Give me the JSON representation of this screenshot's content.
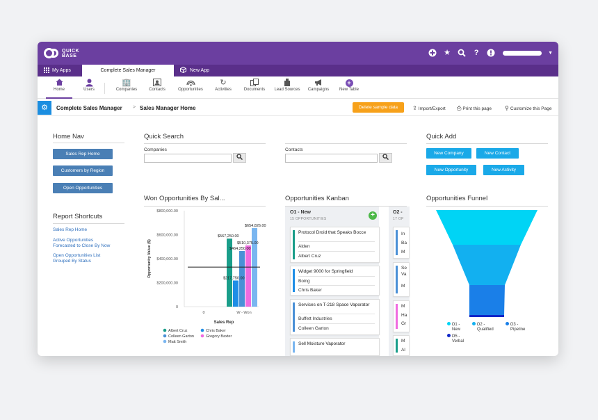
{
  "topbar": {
    "logo_line1": "QUICK",
    "logo_line2": "BASE",
    "icons": [
      "add-icon",
      "star-icon",
      "search-icon",
      "help-icon",
      "alert-icon"
    ]
  },
  "tabs": {
    "my_apps": "My Apps",
    "active": "Complete Sales Manager",
    "new_app": "New App"
  },
  "nav": {
    "items": [
      "Home",
      "Users",
      "Companies",
      "Contacts",
      "Opportunities",
      "Activities",
      "Documents",
      "Lead Sources",
      "Campaigns",
      "New Table"
    ]
  },
  "breadcrumb": {
    "app": "Complete Sales Manager",
    "sep": ">",
    "page": "Sales Manager Home",
    "delete_sample": "Delete sample data",
    "import_export": "Import/Export",
    "print": "Print this page",
    "customize": "Customize this Page"
  },
  "home_nav": {
    "title": "Home Nav",
    "buttons": [
      "Sales Rep Home",
      "Customers by Region",
      "Open Opportunities"
    ]
  },
  "report_shortcuts": {
    "title": "Report Shortcuts",
    "links": [
      "Sales Rep Home",
      "Active Opportunities",
      "Forecasted to Close By Now",
      "Open Opportunities List",
      "Grouped By Status"
    ]
  },
  "quick_search": {
    "title": "Quick Search",
    "companies_label": "Companies",
    "contacts_label": "Contacts"
  },
  "quick_add": {
    "title": "Quick Add",
    "buttons": [
      "New Company",
      "New Contact",
      "New Opportunity",
      "New Activity"
    ]
  },
  "won_chart": {
    "title": "Won Opportunities By Sal..."
  },
  "chart_data": {
    "type": "bar",
    "title": "Won Opportunities By Sal...",
    "ylabel": "Opportunity Value ($)",
    "xlabel": "Sales Rep",
    "ylim": [
      0,
      800000
    ],
    "y_ticks": [
      "0",
      "$200,000.00",
      "$400,000.00",
      "$600,000.00",
      "$800,000.00"
    ],
    "categories": [
      "0",
      "W - Won"
    ],
    "series": [
      {
        "name": "Albert Cruz",
        "color": "#1a9e8a",
        "values": [
          0,
          567250
        ]
      },
      {
        "name": "Chris Baker",
        "color": "#1f8ee6",
        "values": [
          0,
          217750
        ]
      },
      {
        "name": "Colleen Garton",
        "color": "#4a90d6",
        "values": [
          0,
          464250
        ]
      },
      {
        "name": "Gregory Baxter",
        "color": "#f06be0",
        "values": [
          0,
          510375
        ]
      },
      {
        "name": "Matt Smith",
        "color": "#7ab6f0",
        "values": [
          0,
          654826
        ]
      }
    ],
    "data_labels": [
      "$567,250.00",
      "$217,750.00",
      "$464,250.00",
      "$510,375.00",
      "$654,826.00"
    ],
    "reference_line": 330000
  },
  "kanban": {
    "title": "Opportunities Kanban",
    "col1_head": "O1 - New",
    "col1_sub": "15 OPPORTUNITIES",
    "col2_head": "O2 -",
    "col2_sub": "17 OP",
    "cards": [
      {
        "title": "Protocol Droid that Speaks Bocce",
        "company": "Alden",
        "contact": "Albert Cruz",
        "color": "#1a9e8a"
      },
      {
        "title": "Widget 9000 for Springfield",
        "company": "Boing",
        "contact": "Chris Baker",
        "color": "#1f8ee6"
      },
      {
        "title": "Services on T-218 Space Vaporator",
        "company": "Buffett Industries",
        "contact": "Colleen Garton",
        "color": "#4a90d6"
      },
      {
        "title": "Sell Moisture Vaporator",
        "company": "",
        "contact": "",
        "color": "#7ab6f0"
      }
    ],
    "col2_cards": [
      {
        "l1": "In",
        "l2": "Ba",
        "l3": "M",
        "color": "#4a90d6"
      },
      {
        "l1": "Se",
        "l2": "Va",
        "l3": "M",
        "color": "#4a90d6"
      },
      {
        "l1": "M",
        "l2": "Ha",
        "l3": "Gr",
        "color": "#f06be0"
      },
      {
        "l1": "M",
        "l2": "Al",
        "l3": "",
        "color": "#1a9e8a"
      }
    ]
  },
  "funnel": {
    "title": "Opportunities Funnel",
    "legend": [
      {
        "label1": "O1 -",
        "label2": "New",
        "color": "#00d4f5"
      },
      {
        "label1": "O2 -",
        "label2": "Qualified",
        "color": "#12b0f0"
      },
      {
        "label1": "O3 -",
        "label2": "Pipeline",
        "color": "#1a7fe8"
      },
      {
        "label1": "O5 -",
        "label2": "Verbal",
        "color": "#1027c8"
      }
    ]
  }
}
